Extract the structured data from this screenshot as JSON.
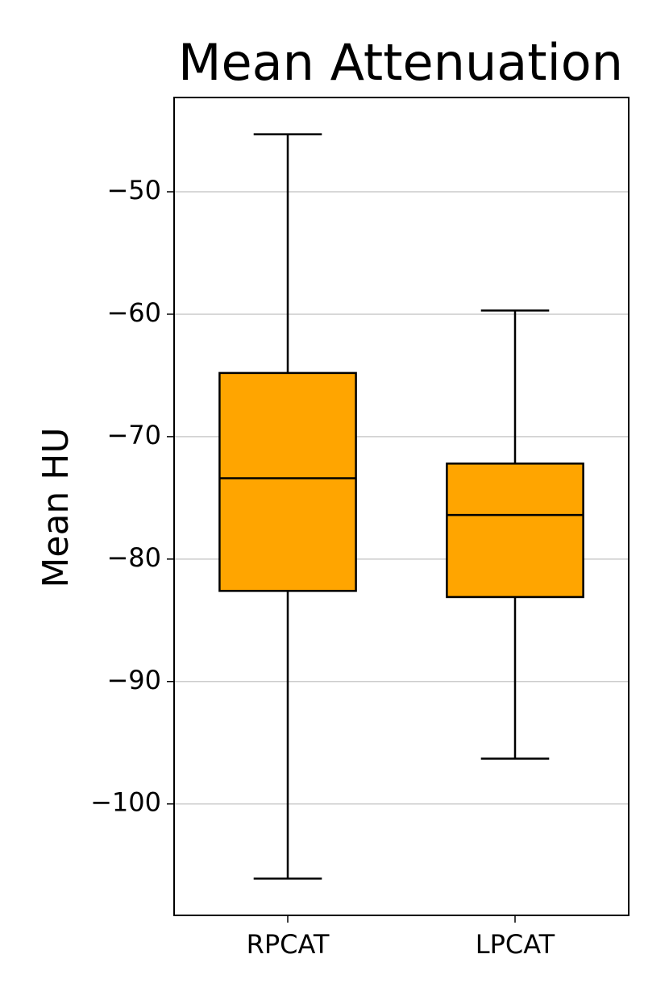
{
  "chart_data": {
    "type": "box",
    "title": "Mean Attenuation",
    "y_label": "Mean HU",
    "categories": [
      "RPCAT",
      "LPCAT"
    ],
    "boxes": [
      {
        "min": -106.1,
        "q1": -82.6,
        "median": -73.4,
        "q3": -64.8,
        "max": -45.3
      },
      {
        "min": -96.3,
        "q1": -83.1,
        "median": -76.4,
        "q3": -72.2,
        "max": -59.7
      }
    ],
    "color": "#ffa500",
    "ylim": [
      -109.1,
      -42.3
    ],
    "yticks": [
      {
        "value": -100,
        "label": "−100"
      },
      {
        "value": -90,
        "label": "−90"
      },
      {
        "value": -80,
        "label": "−80"
      },
      {
        "value": -70,
        "label": "−70"
      },
      {
        "value": -60,
        "label": "−60"
      },
      {
        "value": -50,
        "label": "−50"
      }
    ],
    "grid": true
  }
}
